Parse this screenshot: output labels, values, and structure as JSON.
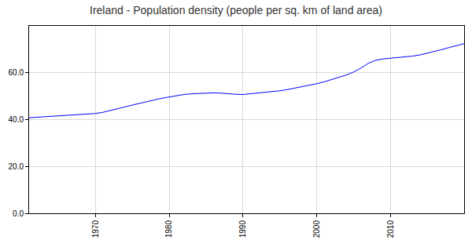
{
  "chart_data": {
    "type": "line",
    "title": "Ireland - Population density (people per sq. km of land area)",
    "x": [
      1961,
      1962,
      1963,
      1964,
      1965,
      1966,
      1967,
      1968,
      1969,
      1970,
      1971,
      1972,
      1973,
      1974,
      1975,
      1976,
      1977,
      1978,
      1979,
      1980,
      1981,
      1982,
      1983,
      1984,
      1985,
      1986,
      1987,
      1988,
      1989,
      1990,
      1991,
      1992,
      1993,
      1994,
      1995,
      1996,
      1997,
      1998,
      1999,
      2000,
      2001,
      2002,
      2003,
      2004,
      2005,
      2006,
      2007,
      2008,
      2009,
      2010,
      2011,
      2012,
      2013,
      2014,
      2015,
      2016,
      2017,
      2018,
      2019,
      2020
    ],
    "values": [
      40.8,
      41.0,
      41.2,
      41.4,
      41.6,
      41.6,
      41.8,
      42.0,
      42.3,
      42.6,
      43.1,
      43.8,
      44.6,
      45.4,
      46.2,
      47.0,
      47.7,
      48.4,
      49.1,
      49.7,
      50.3,
      50.7,
      51.0,
      51.2,
      51.4,
      51.4,
      51.3,
      51.0,
      50.8,
      50.7,
      51.0,
      51.4,
      51.7,
      52.0,
      52.3,
      52.8,
      53.4,
      54.0,
      54.6,
      55.3,
      56.1,
      57.0,
      58.0,
      59.0,
      60.3,
      62.0,
      64.0,
      65.3,
      65.9,
      66.2,
      66.5,
      66.7,
      67.1,
      67.6,
      68.3,
      69.0,
      69.9,
      70.8,
      71.7,
      72.4
    ],
    "color": "#0000ff",
    "xlim": [
      1961,
      2020
    ],
    "xticks": [
      1970,
      1980,
      1990,
      2000,
      2010
    ],
    "ylim": [
      0,
      80
    ],
    "yticks": [
      {
        "value": 0,
        "label": "0.0"
      },
      {
        "value": 20,
        "label": "20.0"
      },
      {
        "value": 40,
        "label": "40.0"
      },
      {
        "value": 60,
        "label": "60.0"
      }
    ],
    "grid": true
  }
}
